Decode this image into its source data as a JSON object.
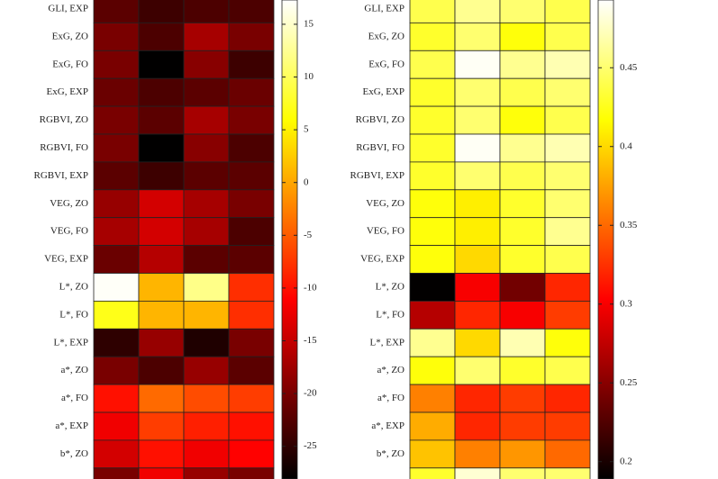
{
  "chart_data": [
    {
      "type": "heatmap",
      "colormap": "hot",
      "rows": [
        "GLI, EXP",
        "ExG, ZO",
        "ExG, FO",
        "ExG, EXP",
        "RGBVI, ZO",
        "RGBVI, FO",
        "RGBVI, EXP",
        "VEG, ZO",
        "VEG, FO",
        "VEG, EXP",
        "L*, ZO",
        "L*, FO",
        "L*, EXP",
        "a*, ZO",
        "a*, FO",
        "a*, EXP",
        "b*, ZO",
        null
      ],
      "values": [
        [
          -22,
          -24,
          -23,
          -23
        ],
        [
          -20,
          -23,
          -17,
          -20
        ],
        [
          -20,
          -28,
          -19,
          -24
        ],
        [
          -21,
          -23,
          -22,
          -21
        ],
        [
          -20,
          -22,
          -17,
          -20
        ],
        [
          -20,
          -28,
          -19,
          -23
        ],
        [
          -22,
          -24,
          -22,
          -22
        ],
        [
          -18,
          -14,
          -17,
          -20
        ],
        [
          -17,
          -14,
          -17,
          -23
        ],
        [
          -21,
          -16,
          -22,
          -22
        ],
        [
          17,
          1,
          12,
          -8
        ],
        [
          7,
          1,
          1,
          -8
        ],
        [
          -25,
          -18,
          -26,
          -20
        ],
        [
          -20,
          -23,
          -18,
          -22
        ],
        [
          -10,
          -4,
          -6,
          -7
        ],
        [
          -12,
          -7,
          -9,
          -10
        ],
        [
          -14,
          -10,
          -12,
          -11
        ],
        [
          -20,
          -12,
          -18,
          -20
        ]
      ],
      "clim": [
        -28.1,
        17.3
      ],
      "cticks": [
        15,
        10,
        5,
        0,
        -5,
        -10,
        -15,
        -20,
        -25
      ]
    },
    {
      "type": "heatmap",
      "colormap": "hot",
      "rows": [
        "GLI, EXP",
        "ExG, ZO",
        "ExG, FO",
        "ExG, EXP",
        "RGBVI, ZO",
        "RGBVI, FO",
        "RGBVI, EXP",
        "VEG, ZO",
        "VEG, FO",
        "VEG, EXP",
        "L*, ZO",
        "L*, FO",
        "L*, EXP",
        "a*, ZO",
        "a*, FO",
        "a*, EXP",
        "b*, ZO",
        null
      ],
      "values": [
        [
          0.44,
          0.46,
          0.45,
          0.44
        ],
        [
          0.43,
          0.45,
          0.42,
          0.44
        ],
        [
          0.44,
          0.49,
          0.46,
          0.47
        ],
        [
          0.43,
          0.45,
          0.44,
          0.45
        ],
        [
          0.43,
          0.45,
          0.42,
          0.44
        ],
        [
          0.43,
          0.49,
          0.46,
          0.47
        ],
        [
          0.43,
          0.45,
          0.44,
          0.45
        ],
        [
          0.42,
          0.41,
          0.43,
          0.45
        ],
        [
          0.42,
          0.41,
          0.43,
          0.46
        ],
        [
          0.42,
          0.4,
          0.43,
          0.44
        ],
        [
          0.19,
          0.3,
          0.24,
          0.32
        ],
        [
          0.27,
          0.32,
          0.3,
          0.33
        ],
        [
          0.46,
          0.4,
          0.47,
          0.42
        ],
        [
          0.42,
          0.45,
          0.43,
          0.44
        ],
        [
          0.36,
          0.32,
          0.33,
          0.32
        ],
        [
          0.38,
          0.32,
          0.33,
          0.33
        ],
        [
          0.39,
          0.36,
          0.37,
          0.35
        ],
        [
          0.43,
          0.48,
          0.45,
          0.45
        ]
      ],
      "clim": [
        0.189,
        0.493
      ],
      "cticks": [
        0.45,
        0.4,
        0.35,
        0.3,
        0.25,
        0.2
      ]
    }
  ]
}
